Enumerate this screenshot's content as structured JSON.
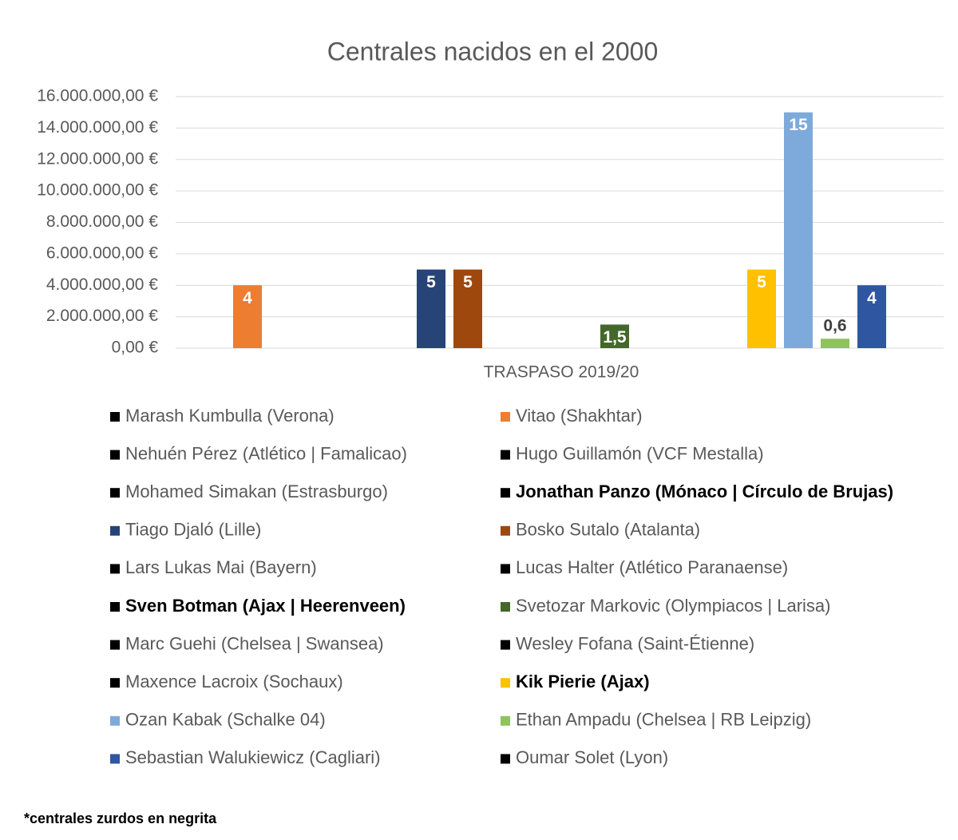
{
  "chart_data": {
    "type": "bar",
    "title": "Centrales nacidos en el 2000",
    "categories": [
      "TRASPASO 2019/20"
    ],
    "ylim": [
      0,
      16000000
    ],
    "yticks": [
      {
        "value": 0,
        "label": "0,00 €"
      },
      {
        "value": 2000000,
        "label": "2.000.000,00 €"
      },
      {
        "value": 4000000,
        "label": "4.000.000,00 €"
      },
      {
        "value": 6000000,
        "label": "6.000.000,00 €"
      },
      {
        "value": 8000000,
        "label": "8.000.000,00 €"
      },
      {
        "value": 10000000,
        "label": "10.000.000,00 €"
      },
      {
        "value": 12000000,
        "label": "12.000.000,00 €"
      },
      {
        "value": 14000000,
        "label": "14.000.000,00 €"
      },
      {
        "value": 16000000,
        "label": "16.000.000,00 €"
      }
    ],
    "grid": true,
    "series": [
      {
        "name": "Marash Kumbulla (Verona)",
        "color": "#000000",
        "values": [
          null
        ]
      },
      {
        "name": "Vitao (Shakhtar)",
        "color": "#ed7d31",
        "values": [
          4000000
        ],
        "value_labels": [
          "4"
        ]
      },
      {
        "name": "Nehuén Pérez (Atlético | Famalicao)",
        "color": "#000000",
        "values": [
          null
        ]
      },
      {
        "name": "Hugo Guillamón (VCF Mestalla)",
        "color": "#000000",
        "values": [
          null
        ]
      },
      {
        "name": "Mohamed Simakan (Estrasburgo)",
        "color": "#000000",
        "values": [
          null
        ]
      },
      {
        "name": "Jonathan Panzo (Mónaco | Círculo de Brujas)",
        "color": "#000000",
        "values": [
          null
        ],
        "bold": true
      },
      {
        "name": "Tiago Djaló (Lille)",
        "color": "#264478",
        "values": [
          5000000
        ],
        "value_labels": [
          "5"
        ]
      },
      {
        "name": "Bosko Sutalo (Atalanta)",
        "color": "#9e480e",
        "values": [
          5000000
        ],
        "value_labels": [
          "5"
        ]
      },
      {
        "name": "Lars Lukas Mai (Bayern)",
        "color": "#000000",
        "values": [
          null
        ]
      },
      {
        "name": "Lucas Halter (Atlético Paranaense)",
        "color": "#000000",
        "values": [
          null
        ]
      },
      {
        "name": "Sven Botman (Ajax | Heerenveen)",
        "color": "#000000",
        "values": [
          null
        ],
        "bold": true
      },
      {
        "name": "Svetozar Markovic (Olympiacos | Larisa)",
        "color": "#43682b",
        "values": [
          1500000
        ],
        "value_labels": [
          "1,5"
        ]
      },
      {
        "name": "Marc Guehi (Chelsea | Swansea)",
        "color": "#000000",
        "values": [
          null
        ]
      },
      {
        "name": "Wesley Fofana (Saint-Étienne)",
        "color": "#000000",
        "values": [
          null
        ]
      },
      {
        "name": "Maxence Lacroix (Sochaux)",
        "color": "#000000",
        "values": [
          null
        ]
      },
      {
        "name": "Kik Pierie (Ajax)",
        "color": "#ffc000",
        "values": [
          5000000
        ],
        "value_labels": [
          "5"
        ],
        "bold": true
      },
      {
        "name": "Ozan Kabak (Schalke 04)",
        "color": "#7eaadb",
        "values": [
          15000000
        ],
        "value_labels": [
          "15"
        ]
      },
      {
        "name": "Ethan Ampadu (Chelsea | RB Leipzig)",
        "color": "#8fc35d",
        "values": [
          600000
        ],
        "value_labels": [
          "0,6"
        ]
      },
      {
        "name": "Sebastian Walukiewicz (Cagliari)",
        "color": "#2f56a0",
        "values": [
          4000000
        ],
        "value_labels": [
          "4"
        ]
      },
      {
        "name": "Oumar Solet (Lyon)",
        "color": "#000000",
        "values": [
          null
        ]
      }
    ],
    "footnote": "*centrales zurdos en negrita"
  }
}
